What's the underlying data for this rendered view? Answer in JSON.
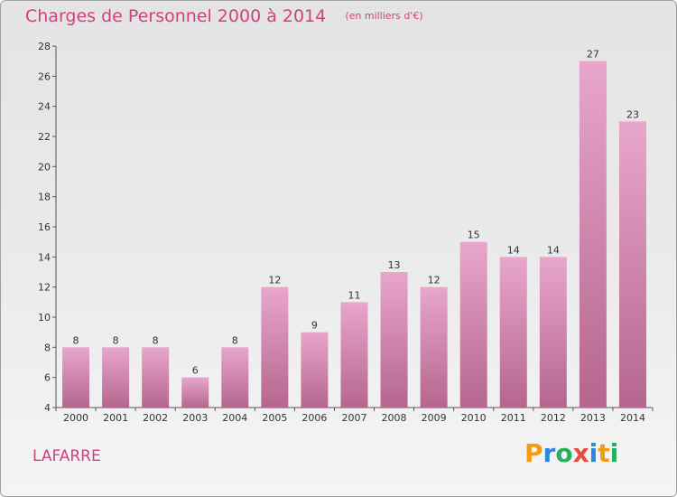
{
  "header": {
    "title": "Charges de Personnel 2000 à 2014",
    "subtitle": "(en milliers d'€)"
  },
  "commune": "LAFARRE",
  "logo": {
    "text": "Proxiti",
    "letters": [
      {
        "char": "P",
        "color": "#f39c12"
      },
      {
        "char": "r",
        "color": "#2e86de"
      },
      {
        "char": "o",
        "color": "#27ae60"
      },
      {
        "char": "x",
        "color": "#e74c3c"
      },
      {
        "char": "i",
        "color": "#2e86de"
      },
      {
        "char": "t",
        "color": "#f39c12"
      },
      {
        "char": "i",
        "color": "#27ae60"
      }
    ]
  },
  "colors": {
    "title": "#d0407e",
    "bar_top": "#e8a6cc",
    "bar_bottom": "#b5668f",
    "axis": "#555555",
    "grid": "#cfcfcf"
  },
  "chart_data": {
    "type": "bar",
    "title": "Charges de Personnel 2000 à 2014",
    "subtitle": "(en milliers d'€)",
    "xlabel": "",
    "ylabel": "",
    "categories": [
      "2000",
      "2001",
      "2002",
      "2003",
      "2004",
      "2005",
      "2006",
      "2007",
      "2008",
      "2009",
      "2010",
      "2011",
      "2012",
      "2013",
      "2014"
    ],
    "values": [
      8,
      8,
      8,
      6,
      8,
      12,
      9,
      11,
      13,
      12,
      15,
      14,
      14,
      27,
      23
    ],
    "ylim": [
      4,
      28
    ],
    "yticks": [
      4,
      6,
      8,
      10,
      12,
      14,
      16,
      18,
      20,
      22,
      24,
      26,
      28
    ],
    "grid": false
  }
}
